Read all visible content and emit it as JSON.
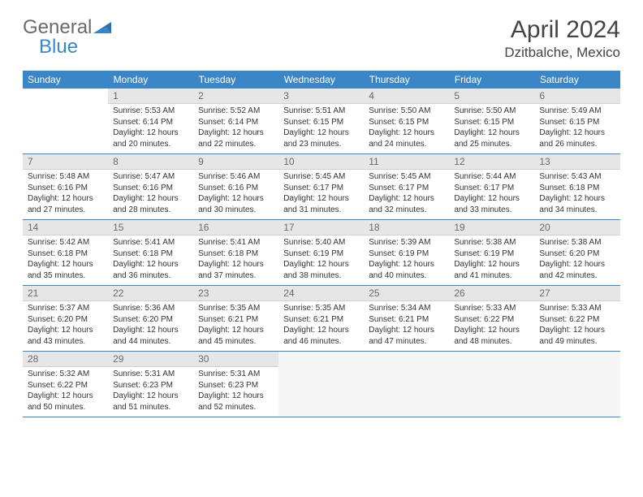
{
  "logo": {
    "word1": "General",
    "word2": "Blue",
    "word1_color": "#6b6b6b",
    "word2_color": "#3b86c6"
  },
  "title": "April 2024",
  "location": "Dzitbalche, Mexico",
  "header_bg": "#3b86c6",
  "header_text": "#ffffff",
  "daynum_bg": "#e6e6e6",
  "daynum_color": "#6b6b6b",
  "rule_color": "#3b86c6",
  "days": [
    "Sunday",
    "Monday",
    "Tuesday",
    "Wednesday",
    "Thursday",
    "Friday",
    "Saturday"
  ],
  "weeks": [
    [
      null,
      {
        "n": "1",
        "sr": "5:53 AM",
        "ss": "6:14 PM",
        "dl": "12 hours and 20 minutes."
      },
      {
        "n": "2",
        "sr": "5:52 AM",
        "ss": "6:14 PM",
        "dl": "12 hours and 22 minutes."
      },
      {
        "n": "3",
        "sr": "5:51 AM",
        "ss": "6:15 PM",
        "dl": "12 hours and 23 minutes."
      },
      {
        "n": "4",
        "sr": "5:50 AM",
        "ss": "6:15 PM",
        "dl": "12 hours and 24 minutes."
      },
      {
        "n": "5",
        "sr": "5:50 AM",
        "ss": "6:15 PM",
        "dl": "12 hours and 25 minutes."
      },
      {
        "n": "6",
        "sr": "5:49 AM",
        "ss": "6:15 PM",
        "dl": "12 hours and 26 minutes."
      }
    ],
    [
      {
        "n": "7",
        "sr": "5:48 AM",
        "ss": "6:16 PM",
        "dl": "12 hours and 27 minutes."
      },
      {
        "n": "8",
        "sr": "5:47 AM",
        "ss": "6:16 PM",
        "dl": "12 hours and 28 minutes."
      },
      {
        "n": "9",
        "sr": "5:46 AM",
        "ss": "6:16 PM",
        "dl": "12 hours and 30 minutes."
      },
      {
        "n": "10",
        "sr": "5:45 AM",
        "ss": "6:17 PM",
        "dl": "12 hours and 31 minutes."
      },
      {
        "n": "11",
        "sr": "5:45 AM",
        "ss": "6:17 PM",
        "dl": "12 hours and 32 minutes."
      },
      {
        "n": "12",
        "sr": "5:44 AM",
        "ss": "6:17 PM",
        "dl": "12 hours and 33 minutes."
      },
      {
        "n": "13",
        "sr": "5:43 AM",
        "ss": "6:18 PM",
        "dl": "12 hours and 34 minutes."
      }
    ],
    [
      {
        "n": "14",
        "sr": "5:42 AM",
        "ss": "6:18 PM",
        "dl": "12 hours and 35 minutes."
      },
      {
        "n": "15",
        "sr": "5:41 AM",
        "ss": "6:18 PM",
        "dl": "12 hours and 36 minutes."
      },
      {
        "n": "16",
        "sr": "5:41 AM",
        "ss": "6:18 PM",
        "dl": "12 hours and 37 minutes."
      },
      {
        "n": "17",
        "sr": "5:40 AM",
        "ss": "6:19 PM",
        "dl": "12 hours and 38 minutes."
      },
      {
        "n": "18",
        "sr": "5:39 AM",
        "ss": "6:19 PM",
        "dl": "12 hours and 40 minutes."
      },
      {
        "n": "19",
        "sr": "5:38 AM",
        "ss": "6:19 PM",
        "dl": "12 hours and 41 minutes."
      },
      {
        "n": "20",
        "sr": "5:38 AM",
        "ss": "6:20 PM",
        "dl": "12 hours and 42 minutes."
      }
    ],
    [
      {
        "n": "21",
        "sr": "5:37 AM",
        "ss": "6:20 PM",
        "dl": "12 hours and 43 minutes."
      },
      {
        "n": "22",
        "sr": "5:36 AM",
        "ss": "6:20 PM",
        "dl": "12 hours and 44 minutes."
      },
      {
        "n": "23",
        "sr": "5:35 AM",
        "ss": "6:21 PM",
        "dl": "12 hours and 45 minutes."
      },
      {
        "n": "24",
        "sr": "5:35 AM",
        "ss": "6:21 PM",
        "dl": "12 hours and 46 minutes."
      },
      {
        "n": "25",
        "sr": "5:34 AM",
        "ss": "6:21 PM",
        "dl": "12 hours and 47 minutes."
      },
      {
        "n": "26",
        "sr": "5:33 AM",
        "ss": "6:22 PM",
        "dl": "12 hours and 48 minutes."
      },
      {
        "n": "27",
        "sr": "5:33 AM",
        "ss": "6:22 PM",
        "dl": "12 hours and 49 minutes."
      }
    ],
    [
      {
        "n": "28",
        "sr": "5:32 AM",
        "ss": "6:22 PM",
        "dl": "12 hours and 50 minutes."
      },
      {
        "n": "29",
        "sr": "5:31 AM",
        "ss": "6:23 PM",
        "dl": "12 hours and 51 minutes."
      },
      {
        "n": "30",
        "sr": "5:31 AM",
        "ss": "6:23 PM",
        "dl": "12 hours and 52 minutes."
      },
      null,
      null,
      null,
      null
    ]
  ],
  "labels": {
    "sunrise": "Sunrise:",
    "sunset": "Sunset:",
    "daylight": "Daylight:"
  }
}
